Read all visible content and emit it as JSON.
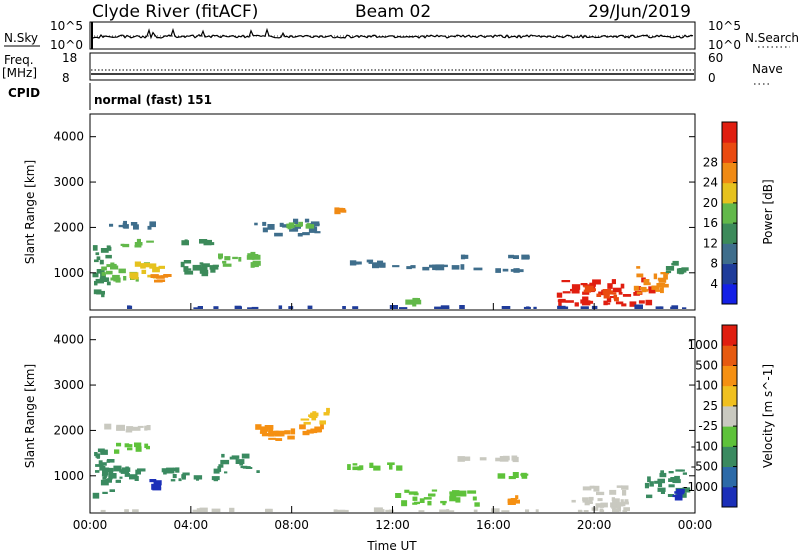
{
  "header": {
    "station": "Clyde River (fitACF)",
    "beam": "Beam 02",
    "date": "29/Jun/2019"
  },
  "status_panels": {
    "nsky_label": "N.Sky",
    "nsky_ticks": [
      "10^5",
      "10^0"
    ],
    "nsearch_label": "N.Search",
    "nsearch_ticks": [
      "10^5",
      "10^0"
    ],
    "freq_label_1": "Freq.",
    "freq_label_2": "[MHz]",
    "freq_ticks": [
      "18",
      "8"
    ],
    "nave_label": "Nave",
    "nave_ticks": [
      "60",
      "0"
    ],
    "cpid_label": "CPID",
    "cpid_value": "normal (fast) 151"
  },
  "colors": {
    "power_scale": [
      "#1420e6",
      "#1f3c9a",
      "#3f6e8c",
      "#3c8a5a",
      "#62b84a",
      "#e6c21e",
      "#f08a14",
      "#ea4a10",
      "#e01e10"
    ],
    "velocity_scale": [
      "#1b2fb8",
      "#2c6aa8",
      "#3a8a60",
      "#5ec23a",
      "#c9c9c0",
      "#f0c020",
      "#f59012",
      "#e65a10",
      "#e01e10"
    ],
    "ground_scatter": "#c9c9c0"
  },
  "chart_data": [
    {
      "type": "heatmap",
      "name": "power",
      "ylabel": "Slant Range [km]",
      "yticks": [
        "1000",
        "2000",
        "3000",
        "4000"
      ],
      "ylim": [
        180,
        4500
      ],
      "xlim": [
        0,
        24
      ],
      "xticks": [
        "00:00",
        "04:00",
        "08:00",
        "12:00",
        "16:00",
        "20:00",
        "00:00"
      ],
      "colorbar_label": "Power [dB]",
      "colorbar_ticks": [
        "4",
        "8",
        "12",
        "16",
        "20",
        "24",
        "28"
      ],
      "regions": [
        {
          "x": [
            0.1,
            1.0
          ],
          "y": [
            450,
            1700
          ],
          "level": 3
        },
        {
          "x": [
            0.4,
            2.4
          ],
          "y": [
            780,
            1250
          ],
          "level": 4
        },
        {
          "x": [
            1.5,
            3.0
          ],
          "y": [
            850,
            1250
          ],
          "level": 5
        },
        {
          "x": [
            2.3,
            3.3
          ],
          "y": [
            750,
            1000
          ],
          "level": 6
        },
        {
          "x": [
            3.3,
            5.2
          ],
          "y": [
            900,
            1300
          ],
          "level": 3
        },
        {
          "x": [
            5.0,
            6.8
          ],
          "y": [
            1050,
            1500
          ],
          "level": 4
        },
        {
          "x": [
            0.5,
            3.0
          ],
          "y": [
            1950,
            2150
          ],
          "level": 2
        },
        {
          "x": [
            1.0,
            2.6
          ],
          "y": [
            1550,
            1750
          ],
          "level": 4
        },
        {
          "x": [
            3.0,
            5.0
          ],
          "y": [
            1600,
            1750
          ],
          "level": 3
        },
        {
          "x": [
            6.5,
            9.3
          ],
          "y": [
            1800,
            2200
          ],
          "level": 2
        },
        {
          "x": [
            7.5,
            9.0
          ],
          "y": [
            1900,
            2150
          ],
          "level": 4
        },
        {
          "x": [
            9.5,
            10.2
          ],
          "y": [
            2200,
            2500
          ],
          "level": 6
        },
        {
          "x": [
            10.0,
            12.5
          ],
          "y": [
            1100,
            1300
          ],
          "level": 2
        },
        {
          "x": [
            12.5,
            16.0
          ],
          "y": [
            1050,
            1200
          ],
          "level": 2
        },
        {
          "x": [
            14.5,
            17.5
          ],
          "y": [
            1300,
            1400
          ],
          "level": 2
        },
        {
          "x": [
            16.0,
            17.5
          ],
          "y": [
            1000,
            1100
          ],
          "level": 2
        },
        {
          "x": [
            12.5,
            13.5
          ],
          "y": [
            250,
            450
          ],
          "level": 4
        },
        {
          "x": [
            18.5,
            22.5
          ],
          "y": [
            250,
            900
          ],
          "level": 8
        },
        {
          "x": [
            19.5,
            21.0
          ],
          "y": [
            350,
            750
          ],
          "level": 7
        },
        {
          "x": [
            21.5,
            23.0
          ],
          "y": [
            500,
            1150
          ],
          "level": 6
        },
        {
          "x": [
            22.8,
            23.9
          ],
          "y": [
            900,
            1300
          ],
          "level": 3
        },
        {
          "x": [
            0.0,
            24.0
          ],
          "y": [
            180,
            260
          ],
          "level": 1
        }
      ]
    },
    {
      "type": "heatmap",
      "name": "velocity",
      "ylabel": "Slant Range [km]",
      "yticks": [
        "1000",
        "2000",
        "3000",
        "4000"
      ],
      "ylim": [
        180,
        4500
      ],
      "xlim": [
        0,
        24
      ],
      "xticks": [
        "00:00",
        "04:00",
        "08:00",
        "12:00",
        "16:00",
        "20:00",
        "00:00"
      ],
      "xlabel": "Time UT",
      "colorbar_label": "Velocity [m s^-1]",
      "colorbar_ticks": [
        "1000",
        "500",
        "100",
        "25",
        "-25",
        "-100",
        "-500",
        "-1000"
      ],
      "regions": [
        {
          "x": [
            0.1,
            1.0
          ],
          "y": [
            450,
            1700
          ],
          "level": 2
        },
        {
          "x": [
            0.4,
            2.4
          ],
          "y": [
            780,
            1250
          ],
          "level": 2
        },
        {
          "x": [
            2.3,
            2.9
          ],
          "y": [
            650,
            950
          ],
          "level": 0
        },
        {
          "x": [
            2.8,
            5.2
          ],
          "y": [
            850,
            1250
          ],
          "level": 2
        },
        {
          "x": [
            5.0,
            6.8
          ],
          "y": [
            1050,
            1500
          ],
          "level": 2
        },
        {
          "x": [
            0.8,
            2.4
          ],
          "y": [
            1450,
            1750
          ],
          "level": 3
        },
        {
          "x": [
            0.5,
            3.0
          ],
          "y": [
            1950,
            2150
          ],
          "level": 4
        },
        {
          "x": [
            6.5,
            9.3
          ],
          "y": [
            1750,
            2200
          ],
          "level": 6
        },
        {
          "x": [
            8.3,
            9.8
          ],
          "y": [
            2100,
            2500
          ],
          "level": 5
        },
        {
          "x": [
            10.0,
            12.5
          ],
          "y": [
            1100,
            1300
          ],
          "level": 3
        },
        {
          "x": [
            12.0,
            15.5
          ],
          "y": [
            300,
            700
          ],
          "level": 3
        },
        {
          "x": [
            14.5,
            17.5
          ],
          "y": [
            1300,
            1450
          ],
          "level": 4
        },
        {
          "x": [
            16.0,
            17.5
          ],
          "y": [
            900,
            1100
          ],
          "level": 3
        },
        {
          "x": [
            16.5,
            17.2
          ],
          "y": [
            300,
            600
          ],
          "level": 6
        },
        {
          "x": [
            19.0,
            21.5
          ],
          "y": [
            200,
            800
          ],
          "level": 4
        },
        {
          "x": [
            20.0,
            21.5
          ],
          "y": [
            250,
            500
          ],
          "level": 4
        },
        {
          "x": [
            22.0,
            23.9
          ],
          "y": [
            400,
            1150
          ],
          "level": 2
        },
        {
          "x": [
            23.0,
            23.6
          ],
          "y": [
            450,
            750
          ],
          "level": 0
        },
        {
          "x": [
            0.0,
            24.0
          ],
          "y": [
            180,
            260
          ],
          "level": 4
        }
      ]
    }
  ]
}
